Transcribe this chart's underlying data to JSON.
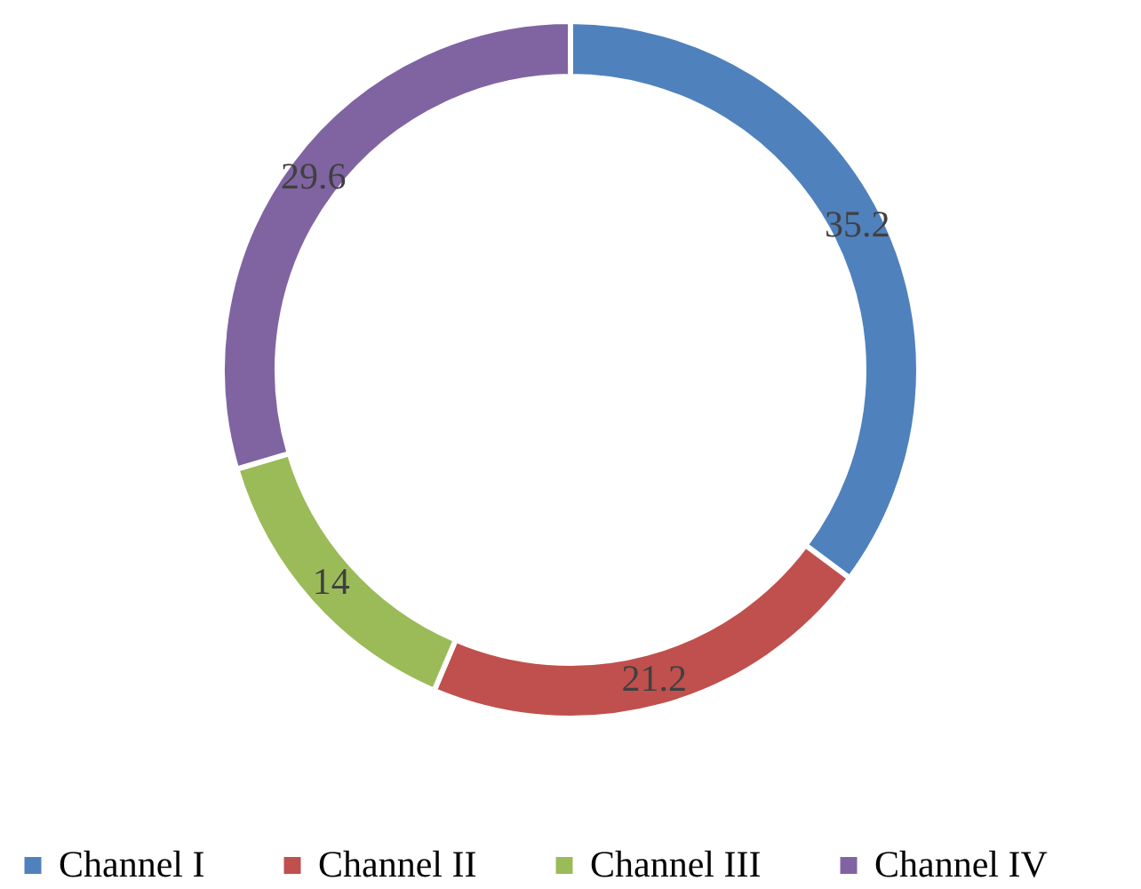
{
  "chart_data": {
    "type": "donut",
    "categories": [
      "Channel I",
      "Channel II",
      "Channel III",
      "Channel IV"
    ],
    "values": [
      35.2,
      21.2,
      14,
      29.6
    ],
    "colors": [
      "#4f81bd",
      "#c0504d",
      "#9bbb59",
      "#8064a2"
    ],
    "data_labels": true,
    "legend": "bottom"
  }
}
